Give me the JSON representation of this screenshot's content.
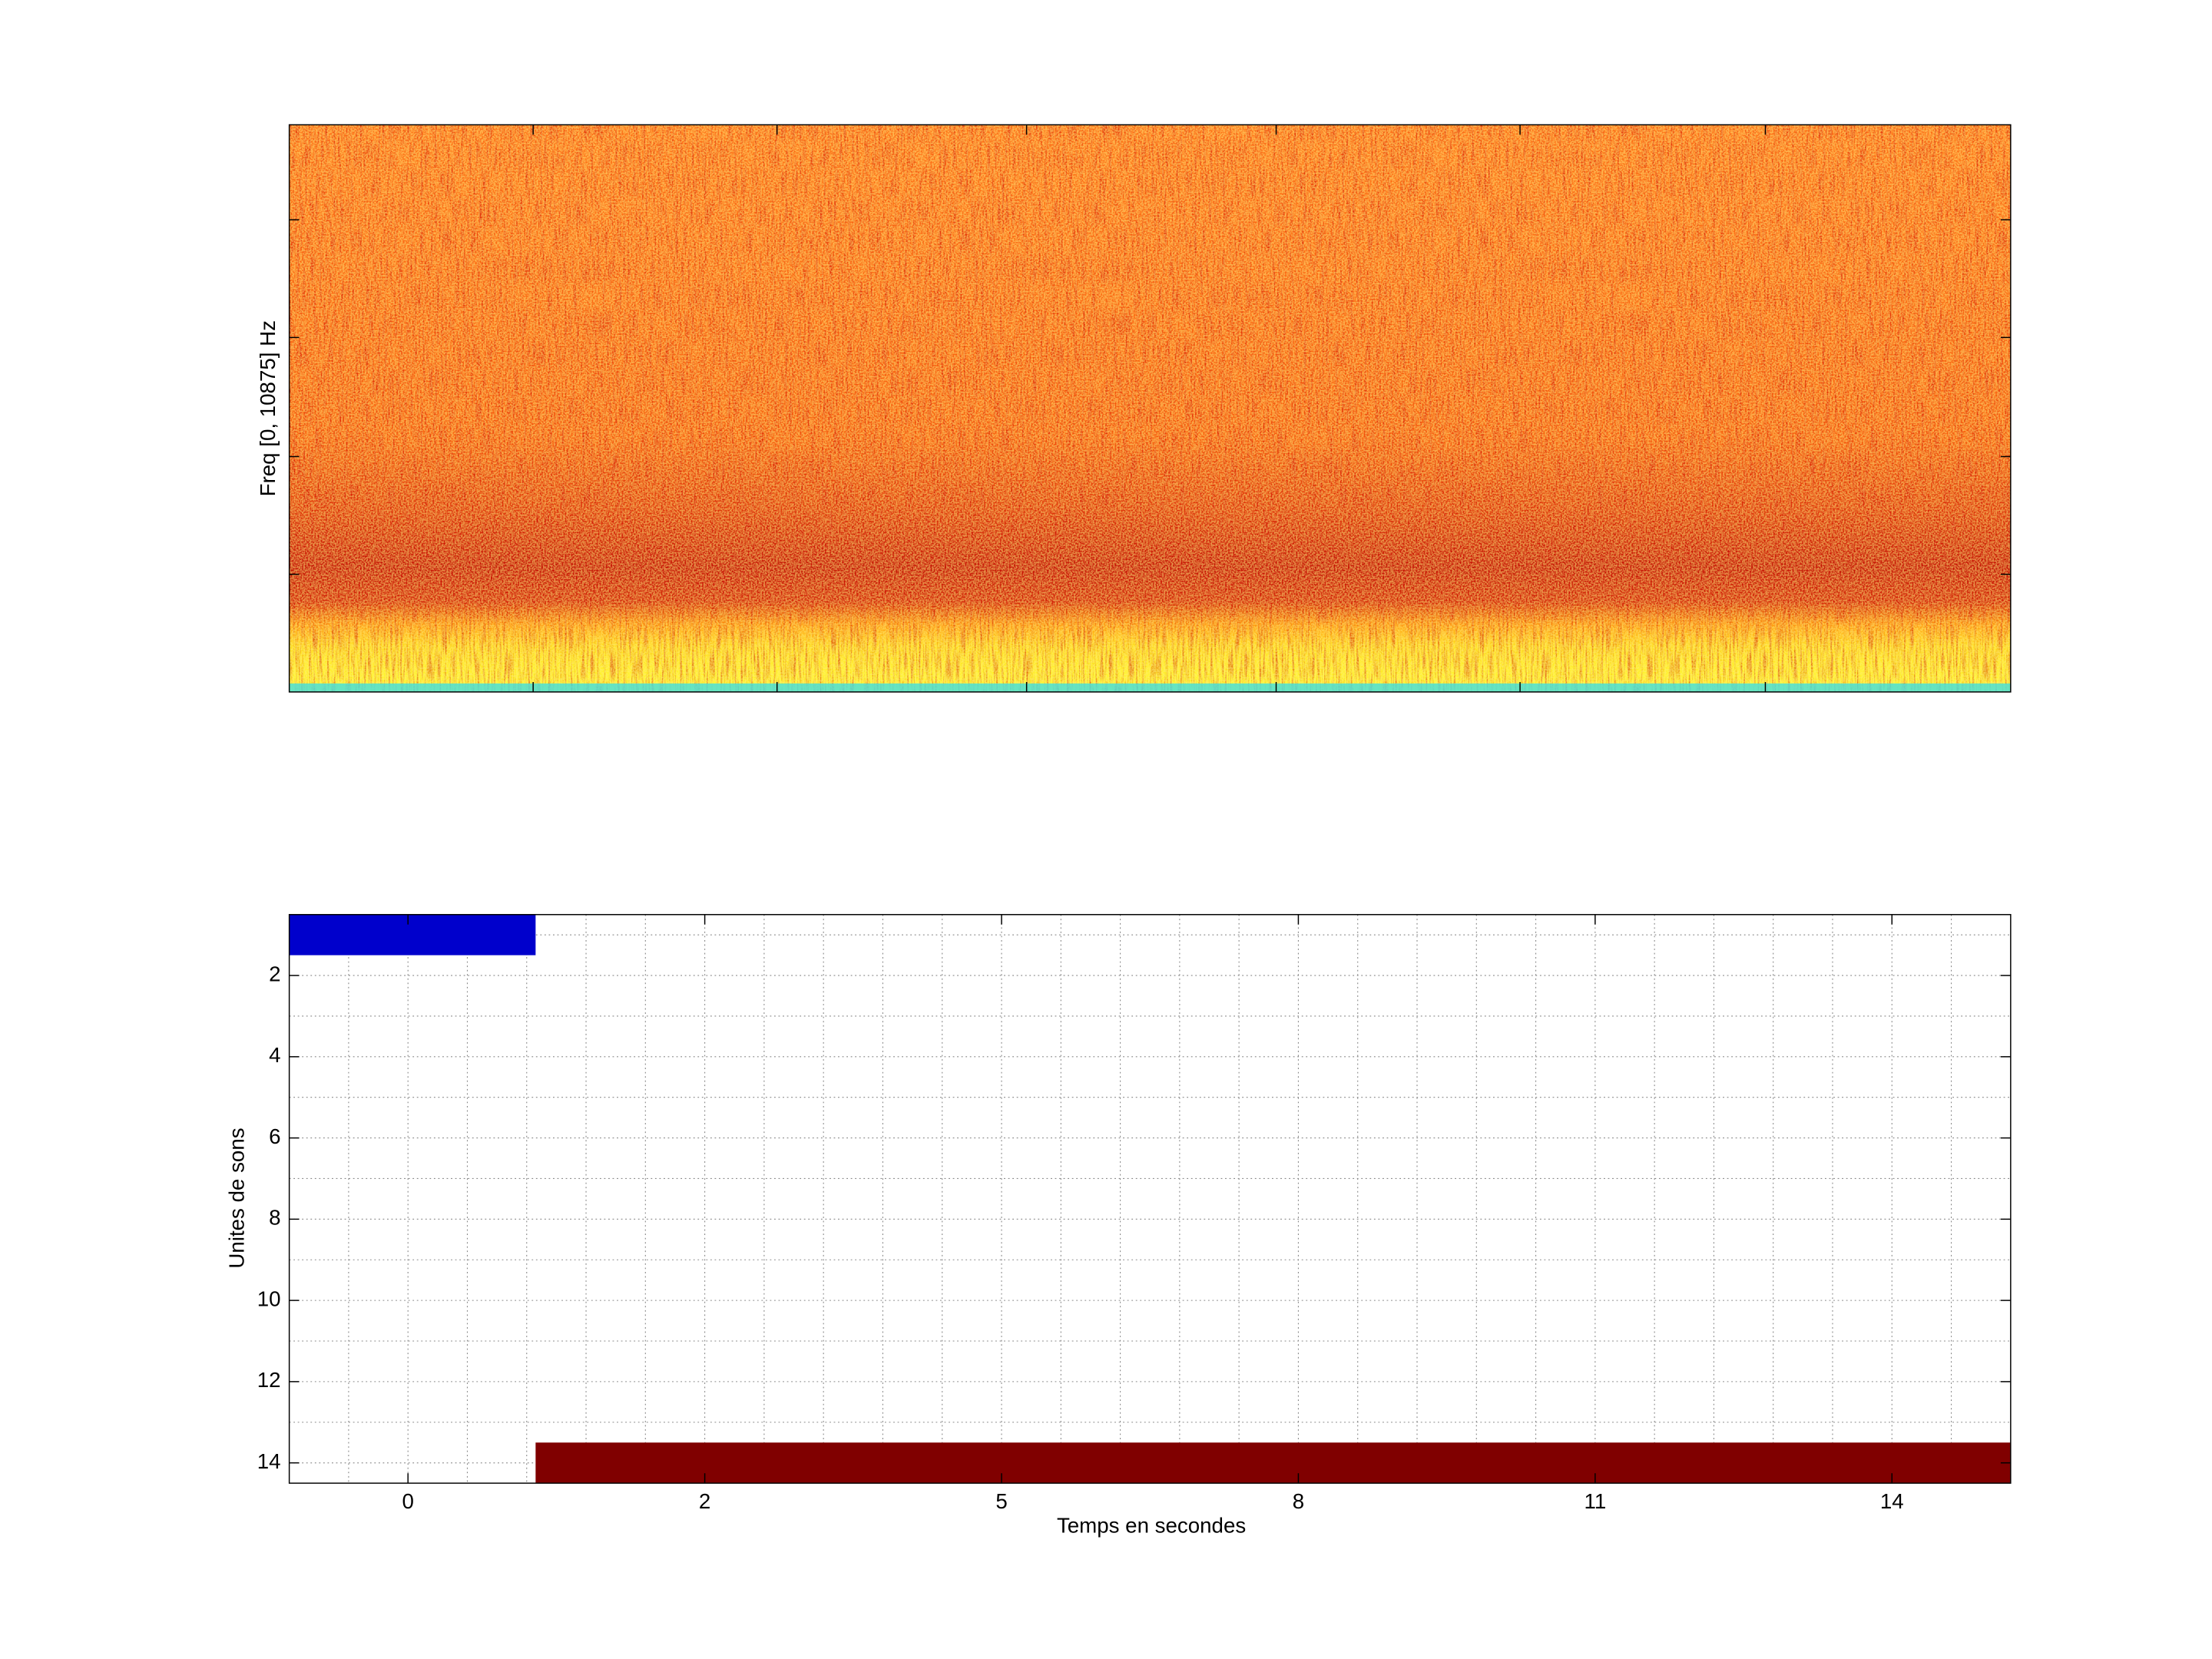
{
  "chart_data": [
    {
      "type": "spectrogram",
      "ylabel": "Freq [0, 10875] Hz"
    },
    {
      "type": "raster",
      "xlabel": "Temps en secondes",
      "ylabel": "Unites de sons",
      "xlim": [
        0,
        29
      ],
      "ylim": [
        0.5,
        14.5
      ],
      "y_reversed": true,
      "xticks": [
        {
          "value": 2,
          "label": "0"
        },
        {
          "value": 7,
          "label": "2"
        },
        {
          "value": 12,
          "label": "5"
        },
        {
          "value": 17,
          "label": "8"
        },
        {
          "value": 22,
          "label": "11"
        },
        {
          "value": 27,
          "label": "14"
        }
      ],
      "yticks": [
        2,
        4,
        6,
        8,
        10,
        12,
        14
      ],
      "xminorticks": [
        1,
        3,
        4,
        5,
        6,
        8,
        9,
        10,
        11,
        13,
        14,
        15,
        16,
        18,
        19,
        20,
        21,
        23,
        24,
        25,
        26,
        28
      ],
      "yminorticks": [
        1,
        3,
        5,
        7,
        9,
        11,
        13
      ],
      "grid": true,
      "bars": [
        {
          "row": 1,
          "start": 0,
          "end": 4.15,
          "color": "#0000cc"
        },
        {
          "row": 14,
          "start": 4.15,
          "end": 29,
          "color": "#800000"
        }
      ]
    }
  ]
}
